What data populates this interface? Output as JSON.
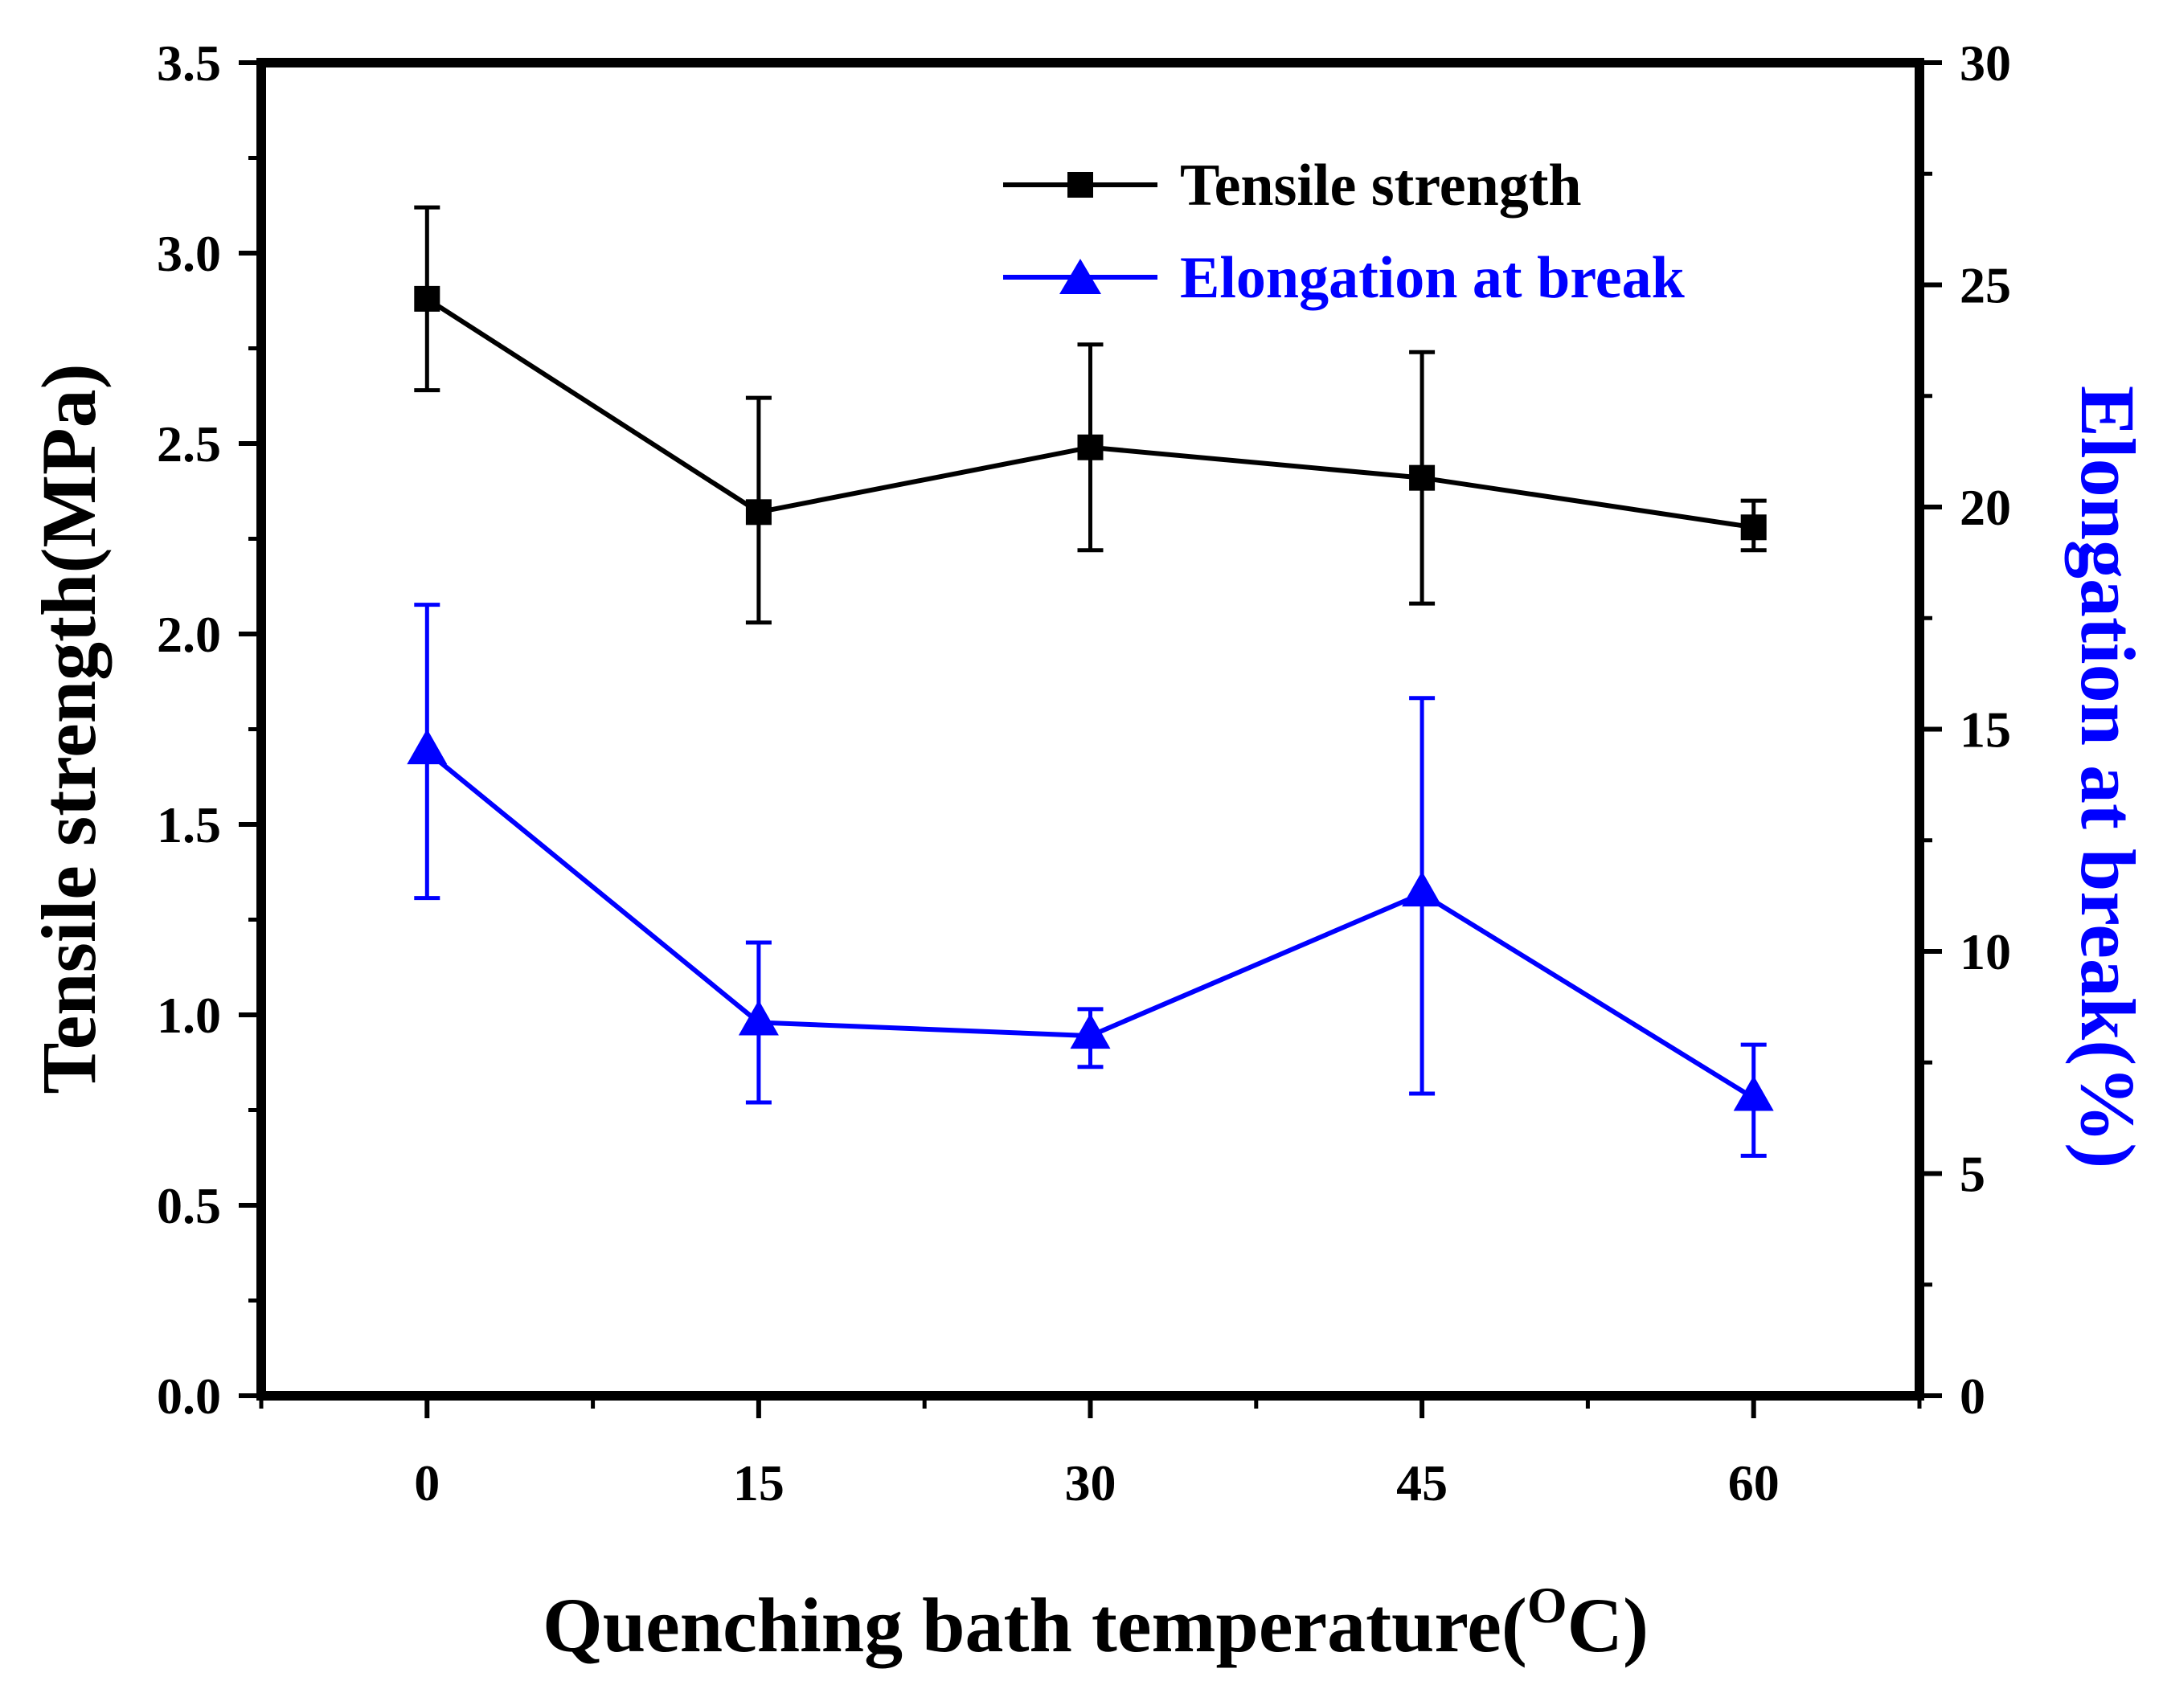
{
  "chart_data": {
    "type": "line",
    "xlabel": "Quenching bath temperature(",
    "xlabel_sup": "O",
    "xlabel_end": "C)",
    "ylabel_left": "Tensile strength(MPa)",
    "ylabel_right": "Elongation at break(%)",
    "x": [
      0,
      15,
      30,
      45,
      60
    ],
    "x_tick_labels": [
      "0",
      "15",
      "30",
      "45",
      "60"
    ],
    "xlim": [
      -7.5,
      67.5
    ],
    "ylim_left": [
      0,
      3.5
    ],
    "y_left_ticks": [
      0.0,
      0.5,
      1.0,
      1.5,
      2.0,
      2.5,
      3.0,
      3.5
    ],
    "y_left_tick_labels": [
      "0.0",
      "0.5",
      "1.0",
      "1.5",
      "2.0",
      "2.5",
      "3.0",
      "3.5"
    ],
    "ylim_right": [
      0,
      30
    ],
    "y_right_ticks": [
      0,
      5,
      10,
      15,
      20,
      25,
      30
    ],
    "y_right_tick_labels": [
      "0",
      "5",
      "10",
      "15",
      "20",
      "25",
      "30"
    ],
    "grid": false,
    "legend_position": "top-right",
    "series": [
      {
        "name": "Tensile strength",
        "axis": "left",
        "color": "#000000",
        "marker": "square",
        "values": [
          2.88,
          2.32,
          2.49,
          2.41,
          2.28
        ],
        "error_low": [
          2.64,
          2.03,
          2.22,
          2.08,
          2.22
        ],
        "error_high": [
          3.12,
          2.62,
          2.76,
          2.74,
          2.35
        ]
      },
      {
        "name": "Elongation at break",
        "axis": "right",
        "color": "#0000ff",
        "marker": "triangle",
        "values": [
          14.5,
          8.4,
          8.1,
          11.3,
          6.7
        ],
        "error_low": [
          11.2,
          6.6,
          7.4,
          6.8,
          5.4
        ],
        "error_high": [
          17.8,
          10.2,
          8.7,
          15.7,
          7.9
        ]
      }
    ]
  }
}
